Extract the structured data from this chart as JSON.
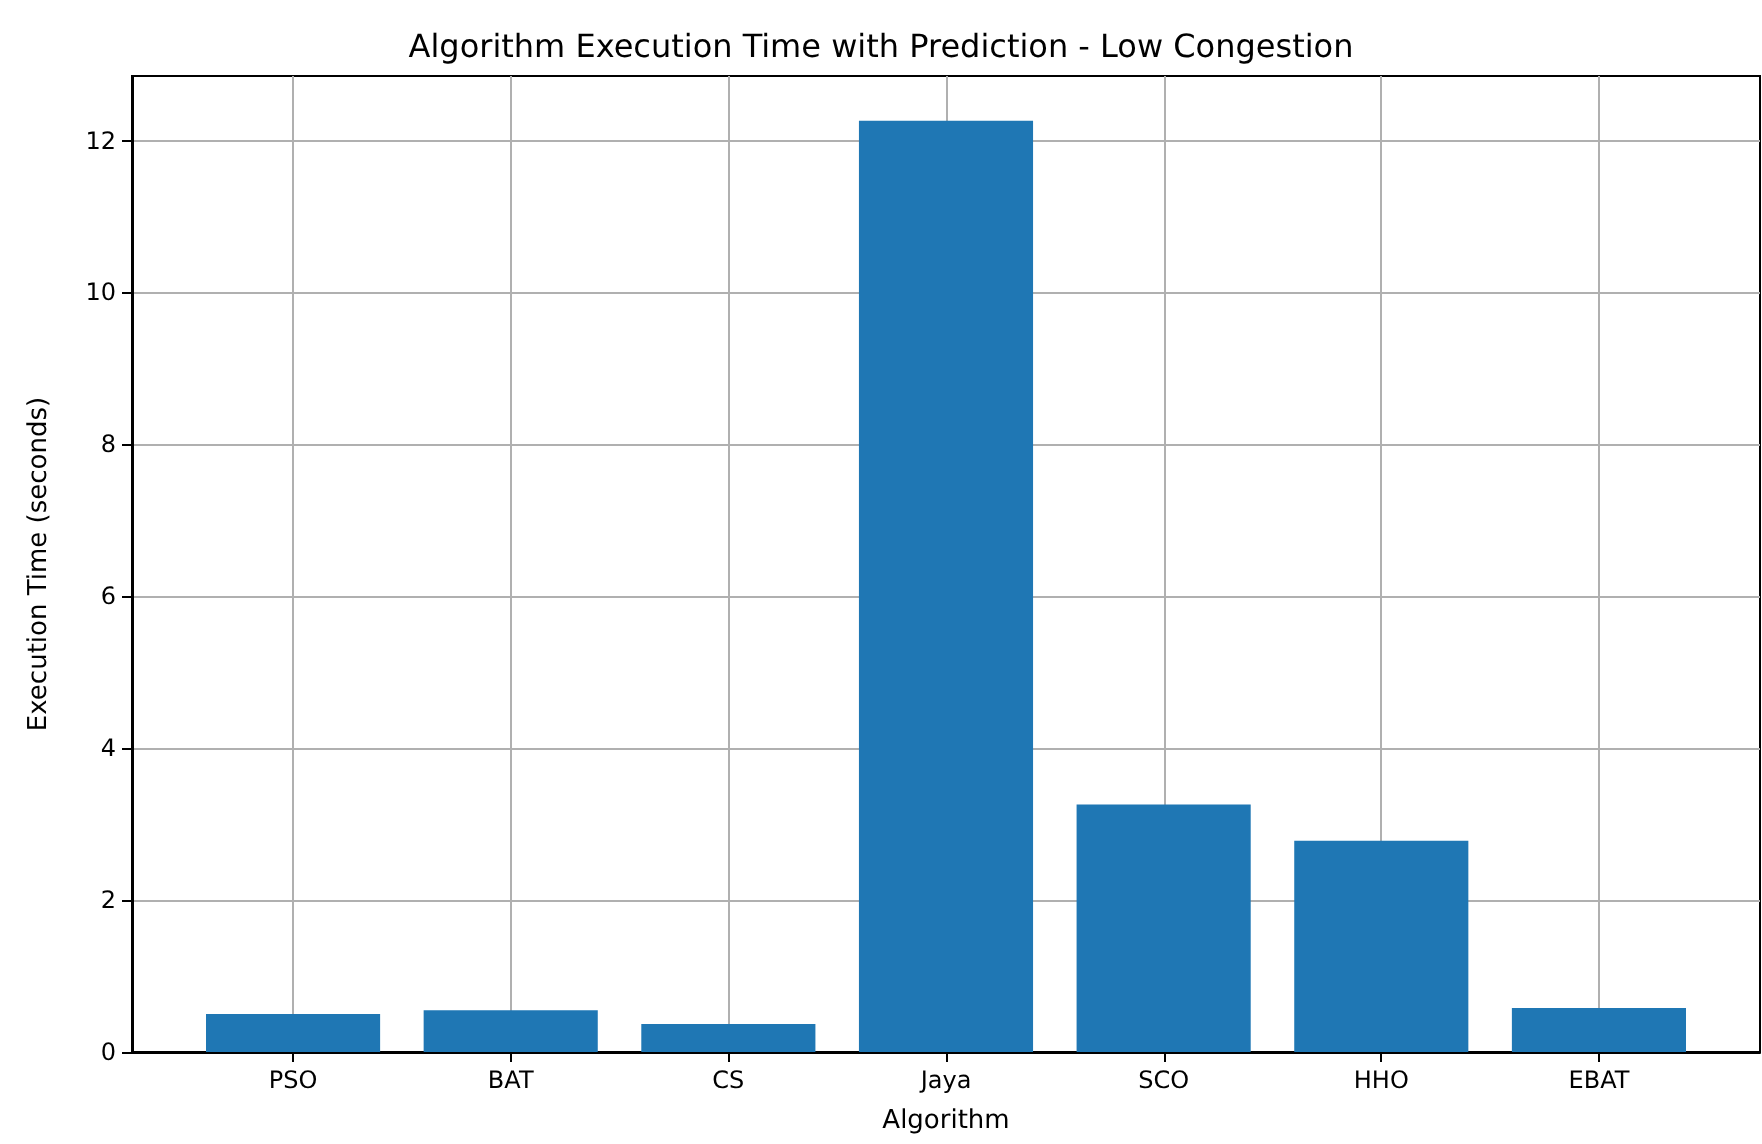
{
  "chart_data": {
    "type": "bar",
    "title": "Algorithm Execution Time with Prediction - Low Congestion",
    "xlabel": "Algorithm",
    "ylabel": "Execution Time (seconds)",
    "categories": [
      "PSO",
      "BAT",
      "CS",
      "Jaya",
      "SCO",
      "HHO",
      "EBAT"
    ],
    "values": [
      0.5,
      0.55,
      0.37,
      12.26,
      3.26,
      2.78,
      0.58
    ],
    "color": "#1f77b4",
    "ylim": [
      0,
      12.85
    ],
    "yticks": [
      0,
      2,
      4,
      6,
      8,
      10,
      12
    ],
    "grid": true
  }
}
